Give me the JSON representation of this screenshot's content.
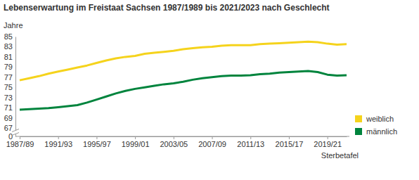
{
  "chart_data": {
    "type": "line",
    "title": "Lebenserwartung im Freistaat Sachsen 1987/1989 bis 2021/2023 nach Geschlecht",
    "y_label": "Jahre",
    "x_label": "Sterbetafel",
    "categories": [
      "1987/89",
      null,
      null,
      null,
      "1991/93",
      null,
      null,
      null,
      "1995/97",
      null,
      null,
      null,
      "1999/01",
      null,
      null,
      null,
      "2003/05",
      null,
      null,
      null,
      "2007/09",
      null,
      null,
      null,
      "2011/13",
      null,
      null,
      null,
      "2015/17",
      null,
      null,
      null,
      "2019/21",
      null,
      null
    ],
    "series": [
      {
        "name": "weiblich",
        "color": "#f5d31c",
        "values": [
          76.4,
          76.8,
          77.2,
          77.7,
          78.1,
          78.5,
          78.9,
          79.3,
          79.8,
          80.3,
          80.7,
          81.0,
          81.2,
          81.6,
          81.8,
          82.0,
          82.2,
          82.5,
          82.7,
          82.9,
          83.0,
          83.2,
          83.3,
          83.3,
          83.3,
          83.5,
          83.6,
          83.7,
          83.8,
          83.9,
          84.0,
          83.9,
          83.6,
          83.4,
          83.5
        ]
      },
      {
        "name": "männlich",
        "color": "#00843d",
        "values": [
          70.6,
          70.7,
          70.8,
          70.9,
          71.1,
          71.3,
          71.5,
          72.0,
          72.6,
          73.2,
          73.8,
          74.3,
          74.7,
          75.0,
          75.3,
          75.6,
          75.8,
          76.1,
          76.5,
          76.8,
          77.0,
          77.2,
          77.3,
          77.3,
          77.4,
          77.6,
          77.7,
          77.9,
          78.0,
          78.1,
          78.2,
          78.0,
          77.5,
          77.3,
          77.4
        ]
      }
    ],
    "ylim": [
      0,
      85
    ],
    "yticks": [
      0,
      67,
      69,
      71,
      73,
      75,
      77,
      79,
      81,
      83,
      85
    ],
    "grid": false,
    "legend": "right"
  }
}
